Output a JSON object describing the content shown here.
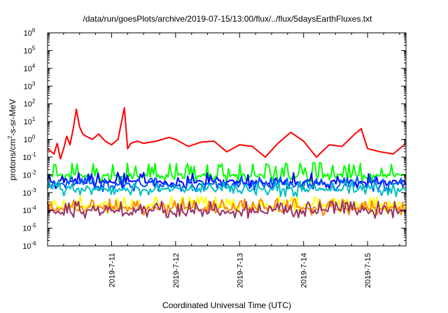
{
  "chart_data": {
    "type": "line",
    "title": "/data/run/goesPlots/archive/2019-07-15/13:00/flux/../flux/5daysEarthFluxes.txt",
    "xlabel": "Coordinated Universal Time (UTC)",
    "ylabel": "protons/cm2-s-sr-MeV",
    "ylabel_parts": {
      "pre": "protons/cm",
      "sup": "2",
      "post": "-s-sr-MeV"
    },
    "yscale": "log",
    "ylim": [
      1e-06,
      1000000.0
    ],
    "ytick_exponents": [
      -6,
      -5,
      -4,
      -3,
      -2,
      -1,
      0,
      1,
      2,
      3,
      4,
      5,
      6
    ],
    "xlim_days": [
      0.0,
      5.6
    ],
    "xticks": [
      {
        "label": "2019-7-11",
        "day": 1.0
      },
      {
        "label": "2019-7-12",
        "day": 2.0
      },
      {
        "label": "2019-7-13",
        "day": 3.0
      },
      {
        "label": "2019-7-14",
        "day": 4.0
      },
      {
        "label": "2019-7-15",
        "day": 5.0
      }
    ],
    "grid": false,
    "legend": "none",
    "series": [
      {
        "color": "#ff0000",
        "x": [
          0.0,
          0.1,
          0.15,
          0.2,
          0.25,
          0.3,
          0.35,
          0.4,
          0.45,
          0.5,
          0.55,
          0.6,
          0.7,
          0.8,
          0.9,
          1.0,
          1.1,
          1.2,
          1.25,
          1.3,
          1.4,
          1.5,
          1.7,
          1.9,
          2.0,
          2.2,
          2.4,
          2.6,
          2.8,
          3.0,
          3.2,
          3.4,
          3.6,
          3.8,
          4.0,
          4.2,
          4.4,
          4.6,
          4.8,
          4.9,
          5.0,
          5.2,
          5.4,
          5.6
        ],
        "y": [
          0.3,
          0.15,
          0.6,
          0.08,
          0.3,
          1.5,
          0.5,
          4.0,
          50,
          5.0,
          2.0,
          1.5,
          1.0,
          2.0,
          0.8,
          0.5,
          1.0,
          60,
          0.3,
          0.6,
          0.8,
          0.6,
          0.8,
          1.3,
          1.0,
          0.4,
          0.7,
          0.8,
          0.2,
          0.5,
          0.4,
          0.1,
          0.6,
          2.5,
          0.8,
          0.1,
          0.5,
          0.4,
          2.0,
          4.0,
          0.3,
          0.2,
          0.15,
          0.6
        ]
      },
      {
        "color": "#00ff00",
        "base": 0.009,
        "amp": 4.0,
        "seed": 11
      },
      {
        "color": "#0000ff",
        "base": 0.004,
        "amp": 2.5,
        "seed": 23
      },
      {
        "color": "#0055ff",
        "base": 0.0028,
        "amp": 2.0,
        "seed": 31
      },
      {
        "color": "#00c0c0",
        "base": 0.0015,
        "amp": 2.2,
        "seed": 37
      },
      {
        "color": "#ffff00",
        "base": 0.00018,
        "amp": 2.5,
        "seed": 41
      },
      {
        "color": "#ff8800",
        "base": 0.00013,
        "amp": 2.5,
        "seed": 53
      },
      {
        "color": "#993366",
        "base": 9e-05,
        "amp": 2.6,
        "seed": 67
      }
    ]
  }
}
